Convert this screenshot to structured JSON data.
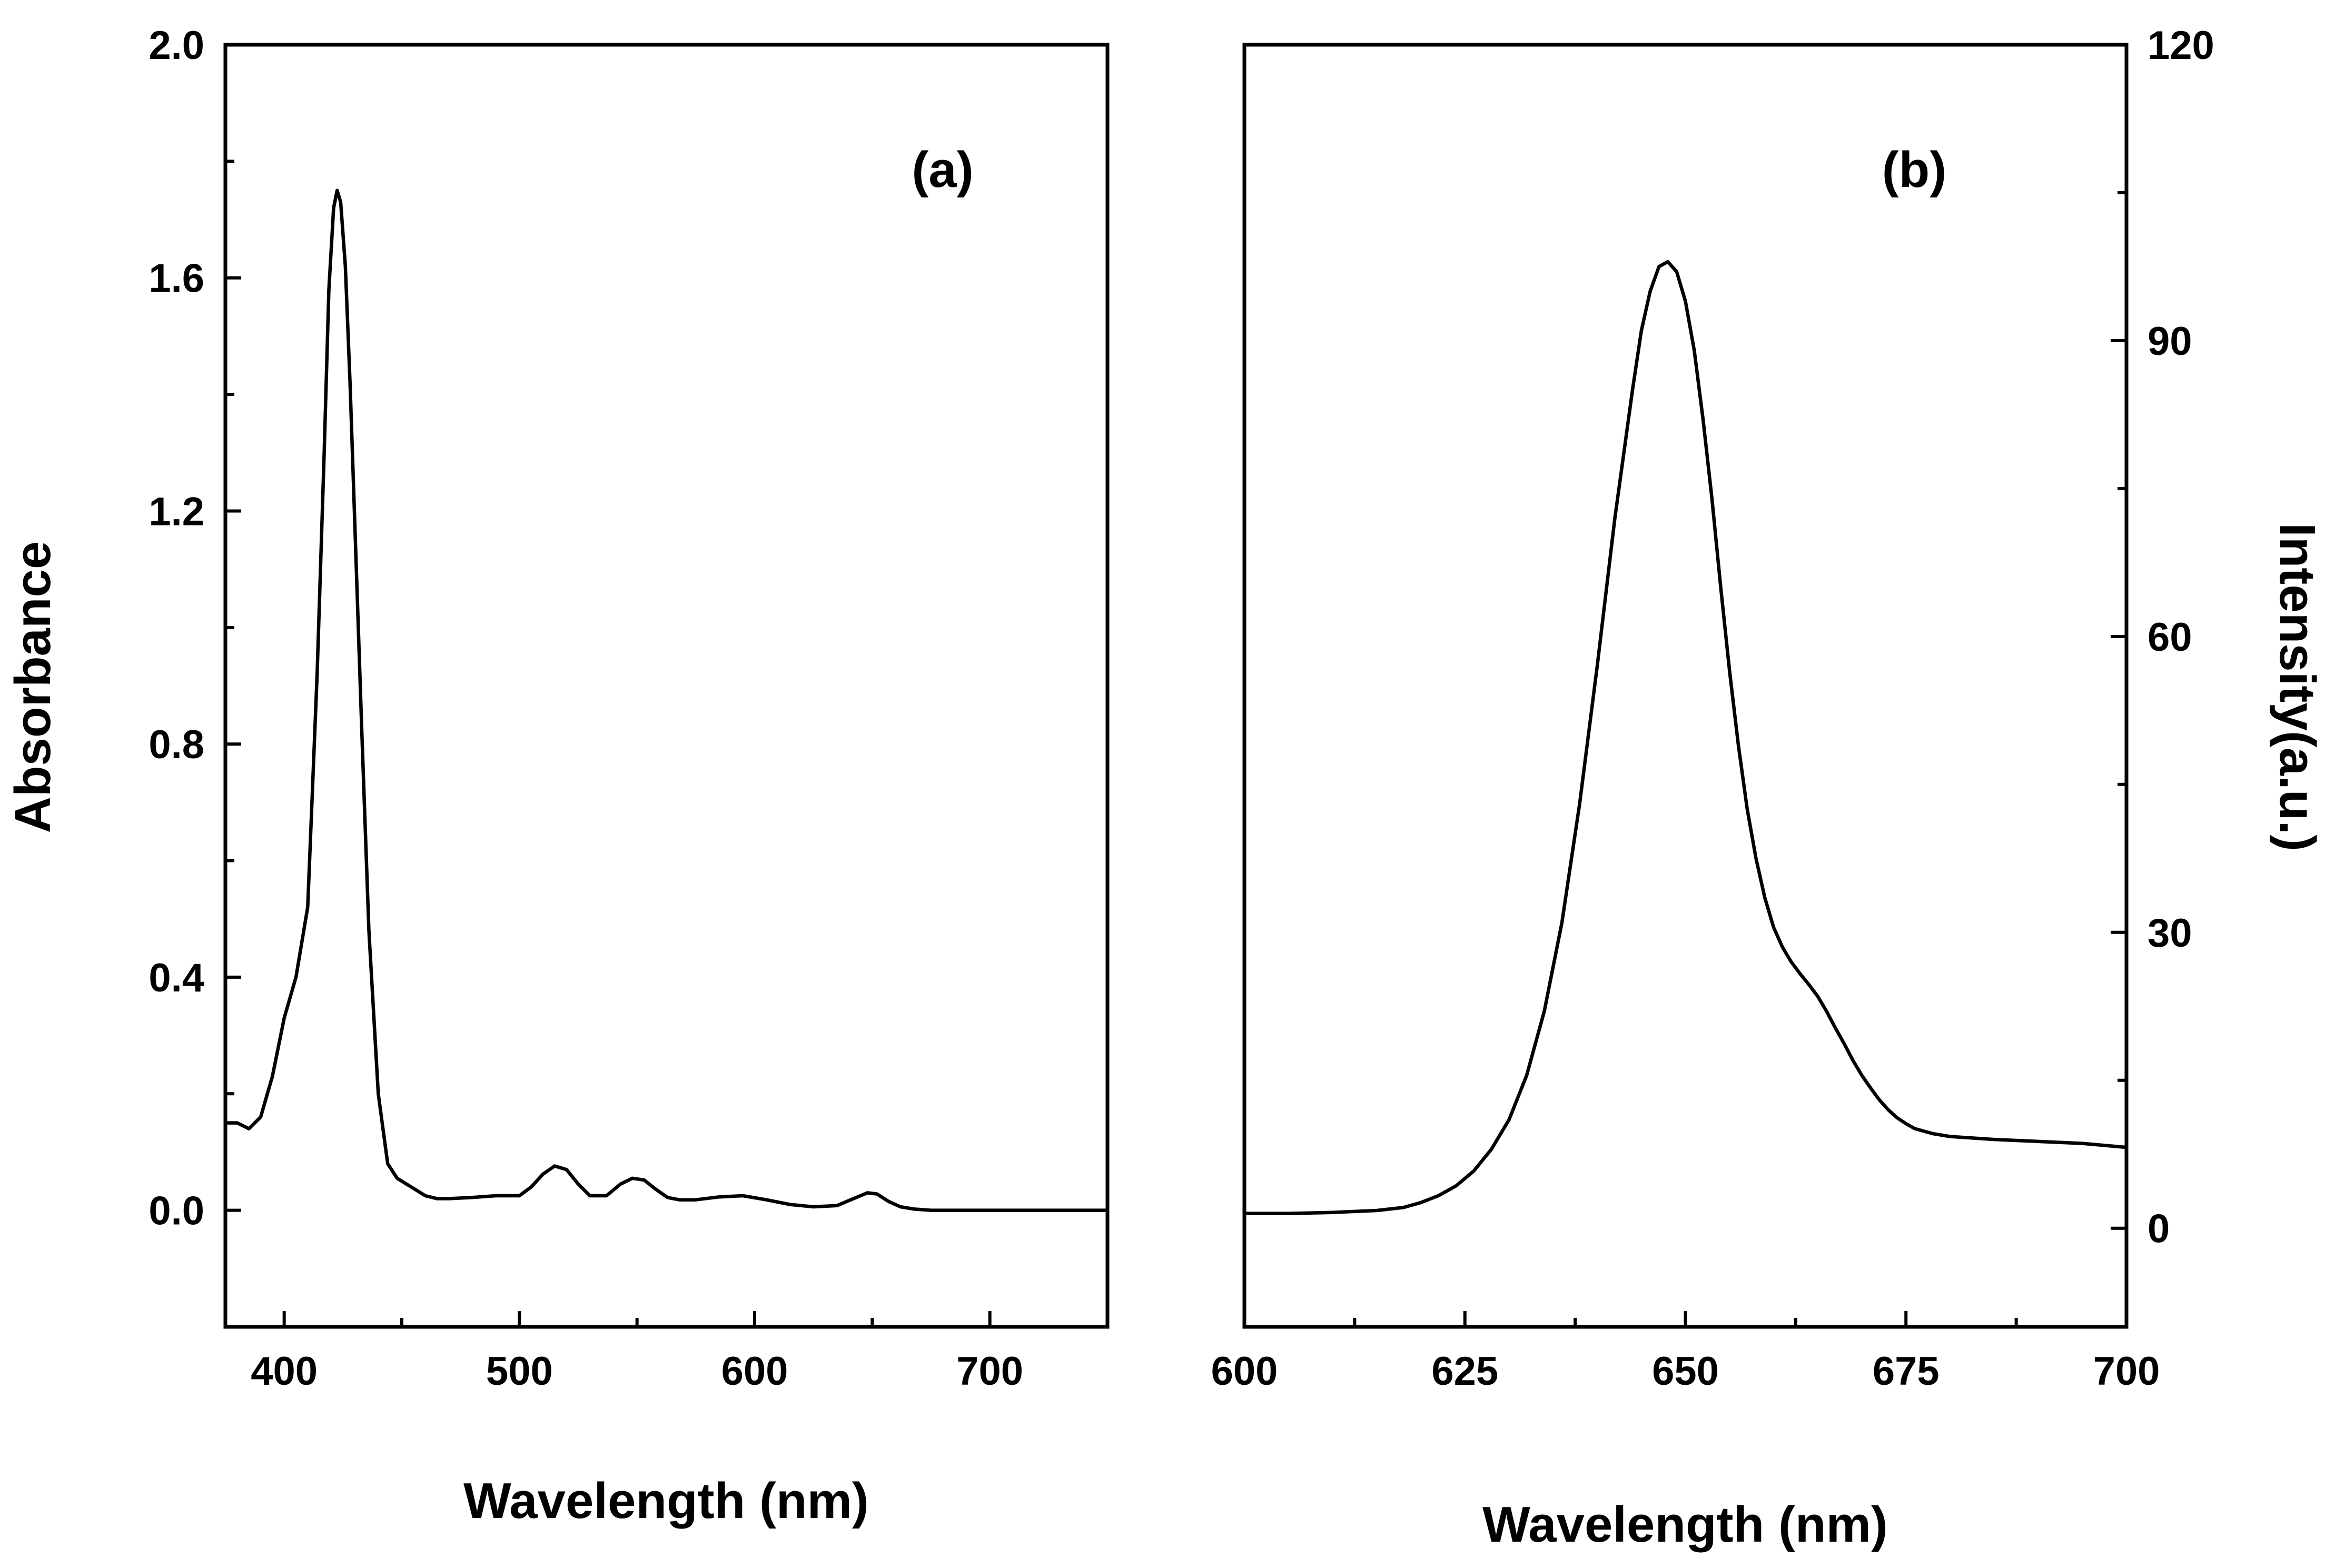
{
  "chart_data": [
    {
      "type": "line",
      "panel_label": "(a)",
      "title": "",
      "xlabel": "Wavelength (nm)",
      "ylabel": "Absorbance",
      "xlim": [
        375,
        750
      ],
      "ylim": [
        -0.2,
        2.0
      ],
      "x_major_ticks": [
        400,
        500,
        600,
        700
      ],
      "x_major_tick_labels": [
        "400",
        "500",
        "600",
        "700"
      ],
      "x_minor_ticks": [
        450,
        550,
        650
      ],
      "y_major_ticks": [
        0.0,
        0.4,
        0.8,
        1.2,
        1.6,
        2.0
      ],
      "y_major_tick_labels": [
        "0.0",
        "0.4",
        "0.8",
        "1.2",
        "1.6",
        "2.0"
      ],
      "y_minor_ticks": [
        -0.2,
        0.2,
        0.6,
        1.0,
        1.4,
        1.8
      ],
      "legend": "none",
      "grid": false,
      "line_color": "#000000",
      "series": [
        {
          "name": "Absorbance",
          "x": [
            375,
            380,
            385,
            390,
            395,
            400,
            405,
            410,
            414,
            417,
            419,
            421,
            422.5,
            424,
            426,
            428,
            430,
            433,
            436,
            440,
            444,
            448,
            452,
            456,
            460,
            465,
            470,
            480,
            490,
            500,
            505,
            510,
            515,
            520,
            525,
            530,
            537,
            543,
            548,
            553,
            558,
            563,
            568,
            575,
            585,
            595,
            605,
            615,
            625,
            635,
            642,
            648,
            652,
            657,
            662,
            668,
            675,
            690,
            710,
            730,
            750
          ],
          "y": [
            0.15,
            0.15,
            0.14,
            0.16,
            0.23,
            0.33,
            0.4,
            0.52,
            0.92,
            1.3,
            1.58,
            1.72,
            1.75,
            1.73,
            1.62,
            1.42,
            1.18,
            0.82,
            0.48,
            0.2,
            0.08,
            0.055,
            0.045,
            0.035,
            0.025,
            0.02,
            0.02,
            0.022,
            0.025,
            0.025,
            0.04,
            0.062,
            0.076,
            0.07,
            0.045,
            0.025,
            0.025,
            0.045,
            0.055,
            0.052,
            0.036,
            0.022,
            0.018,
            0.018,
            0.023,
            0.025,
            0.018,
            0.01,
            0.006,
            0.008,
            0.02,
            0.03,
            0.028,
            0.015,
            0.006,
            0.002,
            0.0,
            0.0,
            0.0,
            0.0,
            0.0
          ]
        }
      ]
    },
    {
      "type": "line",
      "panel_label": "(b)",
      "title": "",
      "xlabel": "Wavelength (nm)",
      "ylabel": "Intensity(a.u.)",
      "ylabel_side": "right",
      "xlim": [
        600,
        700
      ],
      "ylim": [
        -10,
        120
      ],
      "x_major_ticks": [
        600,
        625,
        650,
        675,
        700
      ],
      "x_major_tick_labels": [
        "600",
        "625",
        "650",
        "675",
        "700"
      ],
      "x_minor_ticks": [
        612.5,
        637.5,
        662.5,
        687.5
      ],
      "y_major_ticks": [
        0,
        30,
        60,
        90,
        120
      ],
      "y_major_tick_labels": [
        "0",
        "30",
        "60",
        "90",
        "120"
      ],
      "y_minor_ticks": [
        15,
        45,
        75,
        105
      ],
      "legend": "none",
      "grid": false,
      "line_color": "#000000",
      "series": [
        {
          "name": "Intensity",
          "x": [
            600,
            605,
            610,
            615,
            618,
            620,
            622,
            624,
            626,
            628,
            630,
            632,
            634,
            636,
            638,
            640,
            642,
            644,
            645,
            646,
            647,
            648,
            649,
            650,
            651,
            652,
            653,
            654,
            655,
            656,
            657,
            658,
            659,
            660,
            661,
            662,
            663,
            664,
            665,
            666,
            667,
            668,
            669,
            670,
            671,
            672,
            673,
            674,
            675,
            676,
            678,
            680,
            685,
            690,
            695,
            700
          ],
          "y": [
            1.5,
            1.5,
            1.6,
            1.8,
            2.1,
            2.6,
            3.3,
            4.3,
            5.8,
            8.0,
            11.0,
            15.5,
            22.0,
            31.0,
            43.0,
            57.0,
            72.0,
            85.0,
            91.0,
            95.0,
            97.5,
            98.0,
            97.0,
            94.0,
            89.0,
            82.0,
            74.0,
            65.0,
            56.5,
            49.0,
            42.5,
            37.5,
            33.5,
            30.5,
            28.5,
            27.0,
            25.8,
            24.7,
            23.5,
            22.0,
            20.3,
            18.7,
            17.0,
            15.5,
            14.2,
            13.0,
            12.0,
            11.2,
            10.6,
            10.1,
            9.6,
            9.3,
            9.0,
            8.8,
            8.6,
            8.2
          ]
        }
      ]
    }
  ]
}
